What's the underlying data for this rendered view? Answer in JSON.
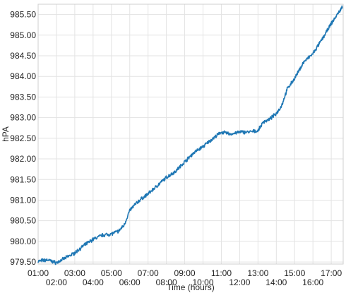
{
  "chart_data": {
    "type": "line",
    "xlabel": "Time (hours)",
    "ylabel": "hPA",
    "xlim": [
      1.0,
      17.65
    ],
    "ylim": [
      979.45,
      985.75
    ],
    "grid": true,
    "legend": "none",
    "x_ticks": [
      {
        "value": 1,
        "label": "01:00",
        "row": "upper"
      },
      {
        "value": 2,
        "label": "02:00",
        "row": "lower"
      },
      {
        "value": 3,
        "label": "03:00",
        "row": "upper"
      },
      {
        "value": 4,
        "label": "04:00",
        "row": "lower"
      },
      {
        "value": 5,
        "label": "05:00",
        "row": "upper"
      },
      {
        "value": 6,
        "label": "06:00",
        "row": "lower"
      },
      {
        "value": 7,
        "label": "07:00",
        "row": "upper"
      },
      {
        "value": 8,
        "label": "08:00",
        "row": "lower"
      },
      {
        "value": 9,
        "label": "09:00",
        "row": "upper"
      },
      {
        "value": 10,
        "label": "10:00",
        "row": "lower"
      },
      {
        "value": 11,
        "label": "11:00",
        "row": "upper"
      },
      {
        "value": 12,
        "label": "12:00",
        "row": "lower"
      },
      {
        "value": 13,
        "label": "13:00",
        "row": "upper"
      },
      {
        "value": 14,
        "label": "14:00",
        "row": "lower"
      },
      {
        "value": 15,
        "label": "15:00",
        "row": "upper"
      },
      {
        "value": 16,
        "label": "16:00",
        "row": "lower"
      },
      {
        "value": 17,
        "label": "17:00",
        "row": "upper"
      }
    ],
    "y_ticks": [
      {
        "value": 979.5,
        "label": "979.50"
      },
      {
        "value": 980.0,
        "label": "980.00"
      },
      {
        "value": 980.5,
        "label": "980.50"
      },
      {
        "value": 981.0,
        "label": "981.00"
      },
      {
        "value": 981.5,
        "label": "981.50"
      },
      {
        "value": 982.0,
        "label": "982.00"
      },
      {
        "value": 982.5,
        "label": "982.50"
      },
      {
        "value": 983.0,
        "label": "983.00"
      },
      {
        "value": 983.5,
        "label": "983.50"
      },
      {
        "value": 984.0,
        "label": "984.00"
      },
      {
        "value": 984.5,
        "label": "984.50"
      },
      {
        "value": 985.0,
        "label": "985.00"
      },
      {
        "value": 985.5,
        "label": "985.50"
      }
    ],
    "series": [
      {
        "color": "#1f77b4",
        "x": [
          1.0,
          1.5,
          2.0,
          2.5,
          3.0,
          3.5,
          4.0,
          4.5,
          5.0,
          5.4,
          5.7,
          6.0,
          6.3,
          6.6,
          7.0,
          7.5,
          8.0,
          8.5,
          9.0,
          9.5,
          10.0,
          10.5,
          11.0,
          11.5,
          12.0,
          12.5,
          13.0,
          13.3,
          13.6,
          14.0,
          14.3,
          14.6,
          15.0,
          15.5,
          16.0,
          16.5,
          17.0,
          17.4,
          17.6
        ],
        "y": [
          979.52,
          979.55,
          979.48,
          979.6,
          979.72,
          979.9,
          980.05,
          980.15,
          980.18,
          980.25,
          980.4,
          980.75,
          980.9,
          981.02,
          981.15,
          981.35,
          981.55,
          981.7,
          981.93,
          982.15,
          982.3,
          982.48,
          982.65,
          982.6,
          982.65,
          982.65,
          982.68,
          982.9,
          982.95,
          983.1,
          983.3,
          983.7,
          983.95,
          984.35,
          984.55,
          984.9,
          985.28,
          985.55,
          985.68
        ]
      }
    ]
  }
}
